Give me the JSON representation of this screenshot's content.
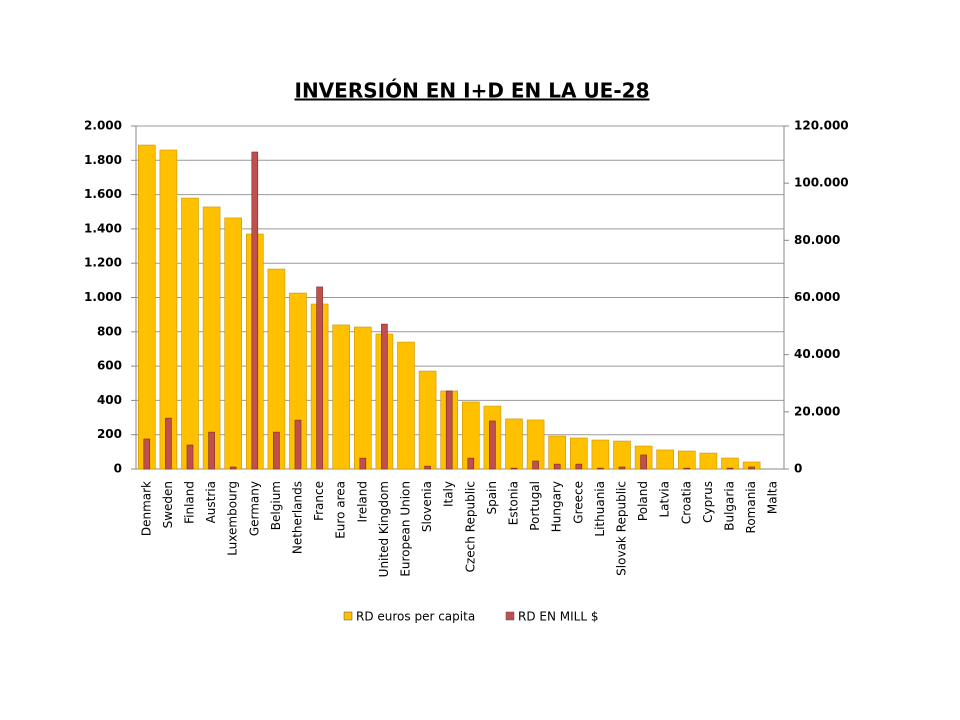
{
  "chart_data": {
    "type": "bar",
    "title": "INVERSIÓN EN I+D EN LA UE-28",
    "categories": [
      "Denmark",
      "Sweden",
      "Finland",
      "Austria",
      "Luxembourg",
      "Germany",
      "Belgium",
      "Netherlands",
      "France",
      "Euro area",
      "Ireland",
      "United Kingdom",
      "European Union",
      "Slovenia",
      "Italy",
      "Czech Republic",
      "Spain",
      "Estonia",
      "Portugal",
      "Hungary",
      "Greece",
      "Lithuania",
      "Slovak Republic",
      "Poland",
      "Latvia",
      "Croatia",
      "Cyprus",
      "Bulgaria",
      "Romania",
      "Malta"
    ],
    "series": [
      {
        "name": "RD euros per capita",
        "color": "#ffc000",
        "values": [
          1889,
          1860,
          1580,
          1528,
          1464,
          1370,
          1166,
          1026,
          962,
          840,
          828,
          787,
          740,
          571,
          455,
          391,
          367,
          292,
          286,
          192,
          181,
          169,
          163,
          134,
          111,
          105,
          93,
          64,
          41,
          null
        ]
      },
      {
        "name": "RD EN MILL $",
        "color": "#c0504d",
        "axis": "y2",
        "values": [
          10500,
          17800,
          8400,
          12900,
          700,
          110900,
          12900,
          17100,
          63700,
          null,
          3800,
          50700,
          null,
          1000,
          27300,
          3800,
          16800,
          300,
          2800,
          1700,
          1700,
          300,
          700,
          4900,
          null,
          300,
          null,
          300,
          700,
          null
        ]
      }
    ],
    "ylim": [
      0,
      2000
    ],
    "yticks": [
      0,
      200,
      400,
      600,
      800,
      {
        "value": 1000,
        "label": "1.000"
      },
      {
        "value": 1200,
        "label": "1.200"
      },
      {
        "value": 1400,
        "label": "1.400"
      },
      {
        "value": 1600,
        "label": "1.600"
      },
      {
        "value": 1800,
        "label": "1.800"
      },
      {
        "value": 2000,
        "label": "2.000"
      }
    ],
    "y2lim": [
      0,
      120000
    ],
    "y2ticks": [
      0,
      {
        "value": 20000,
        "label": "20.000"
      },
      {
        "value": 40000,
        "label": "40.000"
      },
      {
        "value": 60000,
        "label": "60.000"
      },
      {
        "value": 80000,
        "label": "80.000"
      },
      {
        "value": 100000,
        "label": "100.000"
      },
      {
        "value": 120000,
        "label": "120.000"
      }
    ],
    "grid": true,
    "legend": "bottom"
  }
}
